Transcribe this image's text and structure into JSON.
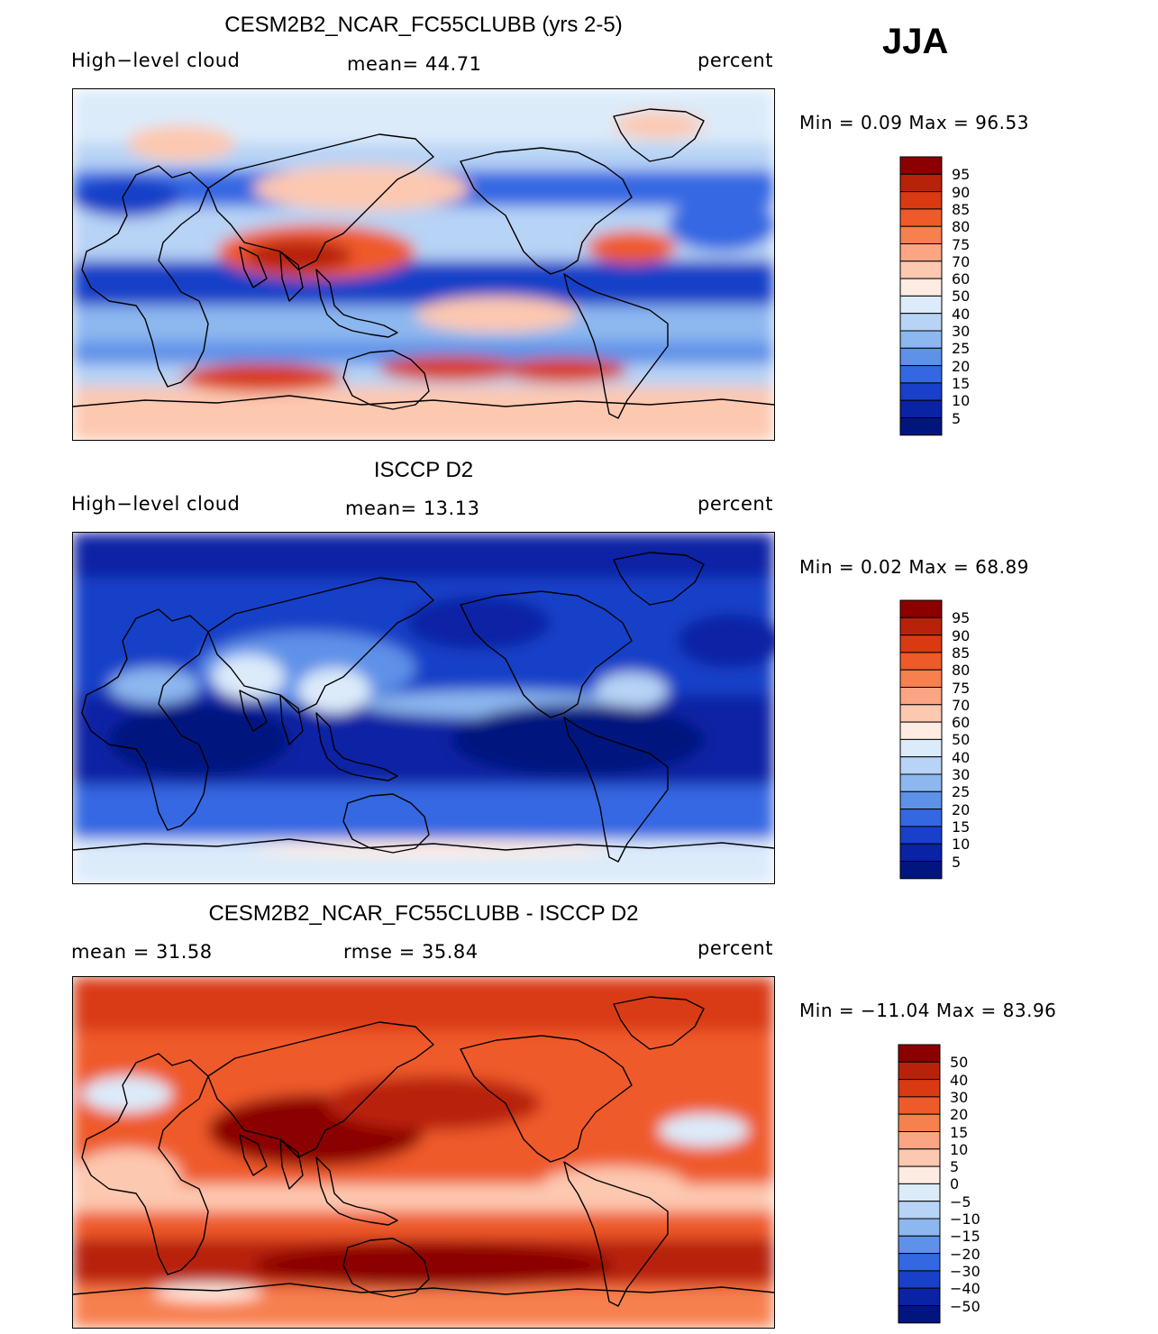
{
  "season": "JJA",
  "panels": [
    {
      "title": "CESM2B2_NCAR_FC55CLUBB (yrs 2-5)",
      "left_label": "High−level cloud",
      "center_label": "mean=   44.71",
      "right_label": "percent",
      "minmax": "Min =     0.09  Max =    96.53"
    },
    {
      "title": "ISCCP D2",
      "left_label": "High−level cloud",
      "center_label": "mean=   13.13",
      "right_label": "percent",
      "minmax": "Min =     0.02  Max =    68.89"
    },
    {
      "title": "CESM2B2_NCAR_FC55CLUBB - ISCCP D2",
      "left_label": "mean =   31.58",
      "center_label": "rmse =   35.84",
      "right_label": "percent",
      "minmax": "Min = −11.04  Max =    83.96"
    }
  ],
  "chart_data": [
    {
      "type": "heatmap",
      "title": "CESM2B2_NCAR_FC55CLUBB (yrs 2-5)",
      "variable": "High-level cloud",
      "units": "percent",
      "mean": 44.71,
      "min": 0.09,
      "max": 96.53,
      "colorbar": {
        "labels": [
          "95",
          "90",
          "85",
          "80",
          "75",
          "70",
          "60",
          "50",
          "40",
          "30",
          "25",
          "20",
          "15",
          "10",
          "5"
        ],
        "colors": [
          "#8b0000",
          "#b8220b",
          "#d93a12",
          "#ef5a2a",
          "#f7804f",
          "#fba585",
          "#fdc8b0",
          "#feece2",
          "#dcebfa",
          "#b7d3f5",
          "#8db7ef",
          "#5e91e8",
          "#3468e2",
          "#1840c8",
          "#0a22a4",
          "#00167e"
        ]
      }
    },
    {
      "type": "heatmap",
      "title": "ISCCP D2",
      "variable": "High-level cloud",
      "units": "percent",
      "mean": 13.13,
      "min": 0.02,
      "max": 68.89,
      "colorbar": {
        "labels": [
          "95",
          "90",
          "85",
          "80",
          "75",
          "70",
          "60",
          "50",
          "40",
          "30",
          "25",
          "20",
          "15",
          "10",
          "5"
        ],
        "colors": [
          "#8b0000",
          "#b8220b",
          "#d93a12",
          "#ef5a2a",
          "#f7804f",
          "#fba585",
          "#fdc8b0",
          "#feece2",
          "#dcebfa",
          "#b7d3f5",
          "#8db7ef",
          "#5e91e8",
          "#3468e2",
          "#1840c8",
          "#0a22a4",
          "#00167e"
        ]
      }
    },
    {
      "type": "heatmap",
      "title": "CESM2B2_NCAR_FC55CLUBB - ISCCP D2",
      "units": "percent",
      "mean": 31.58,
      "rmse": 35.84,
      "min": -11.04,
      "max": 83.96,
      "colorbar": {
        "labels": [
          "50",
          "40",
          "30",
          "20",
          "15",
          "10",
          "5",
          "0",
          "−5",
          "−10",
          "−15",
          "−20",
          "−30",
          "−40",
          "−50"
        ],
        "colors": [
          "#8b0000",
          "#b8220b",
          "#d93a12",
          "#ef5a2a",
          "#f7804f",
          "#fba585",
          "#fdc8b0",
          "#feece2",
          "#dcebfa",
          "#b7d3f5",
          "#8db7ef",
          "#5e91e8",
          "#3468e2",
          "#1840c8",
          "#0a22a4",
          "#00167e"
        ]
      }
    }
  ]
}
